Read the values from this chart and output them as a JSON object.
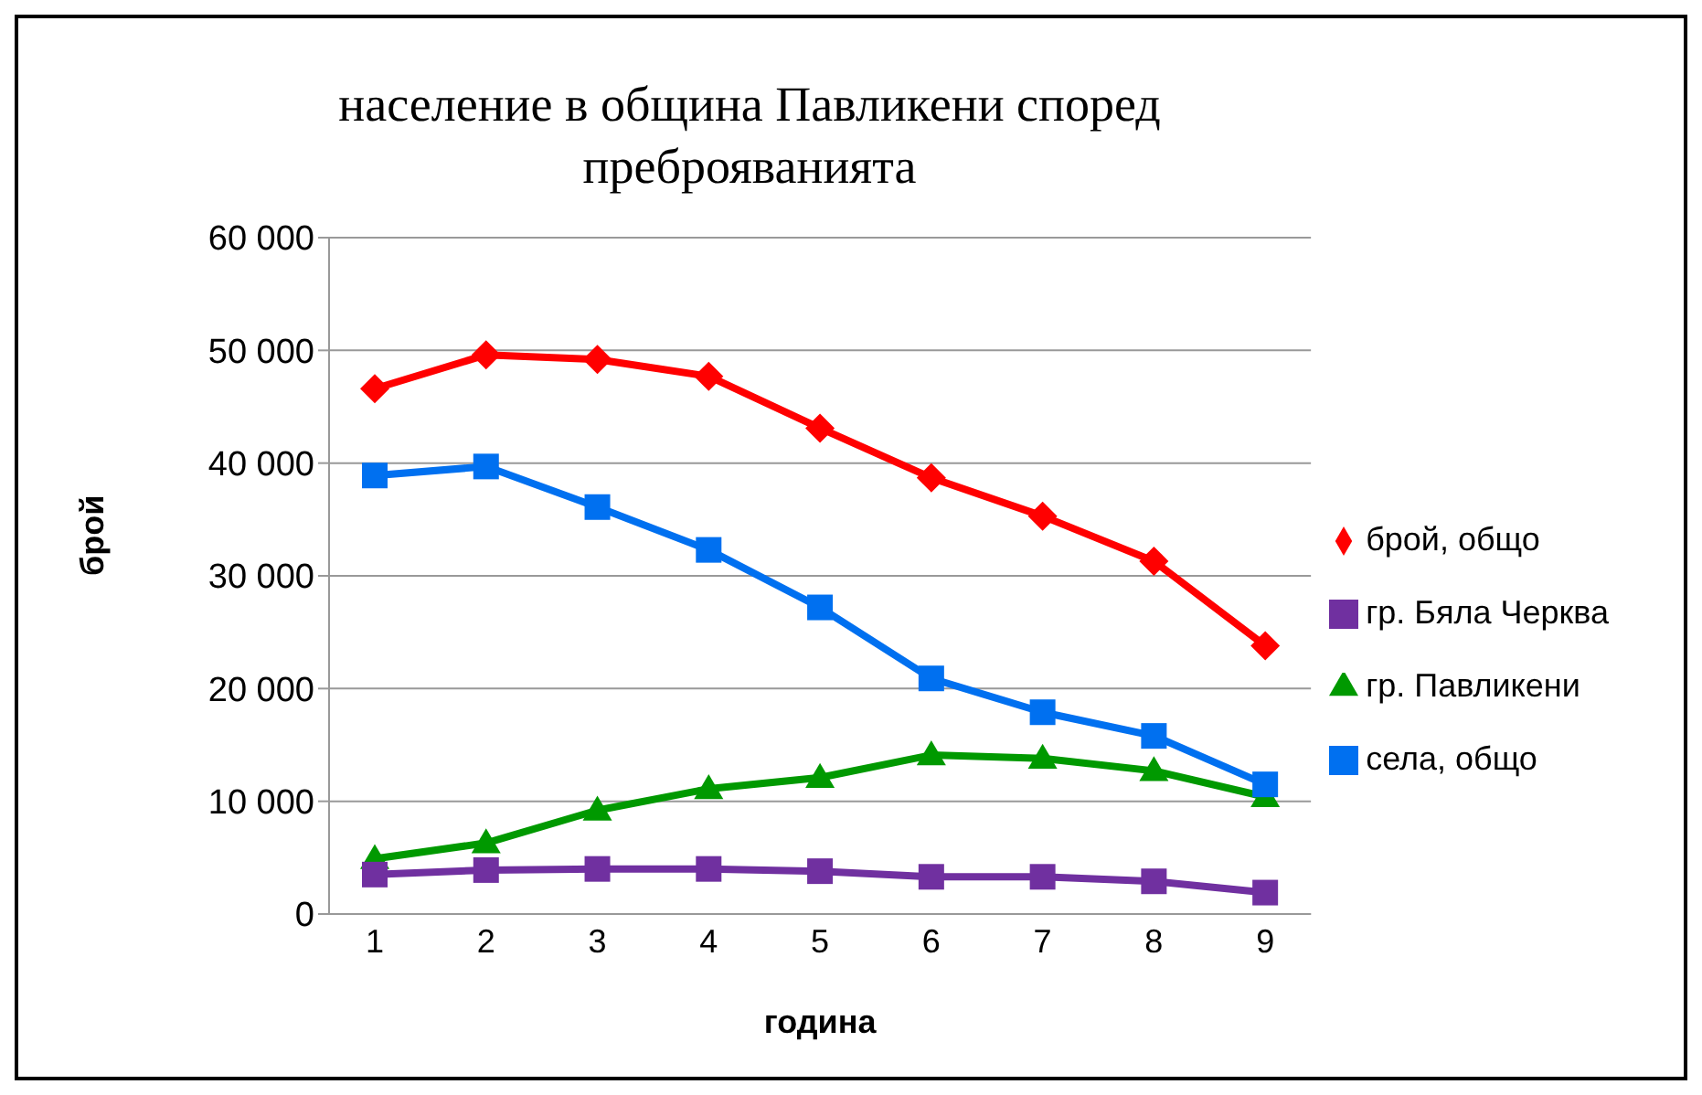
{
  "chart_data": {
    "type": "line",
    "title": "население в община Павликени според преброяванията",
    "xlabel": "година",
    "ylabel": "брой",
    "categories": [
      "1",
      "2",
      "3",
      "4",
      "5",
      "6",
      "7",
      "8",
      "9"
    ],
    "series": [
      {
        "name": "брой, общо",
        "color": "#ff0000",
        "marker": "diamond",
        "values": [
          46600,
          49600,
          49200,
          47700,
          43100,
          38700,
          35300,
          31300,
          23800
        ]
      },
      {
        "name": "гр. Павликени",
        "color": "#009900",
        "marker": "triangle",
        "values": [
          4900,
          6300,
          9200,
          11100,
          12100,
          14100,
          13800,
          12700,
          10400
        ]
      },
      {
        "name": "гр. Бяла Черква",
        "color": "#7030a0",
        "marker": "square",
        "values": [
          3500,
          3900,
          4000,
          4000,
          3800,
          3300,
          3300,
          2900,
          1900
        ]
      },
      {
        "name": "села, общо",
        "color": "#0070f0",
        "marker": "square",
        "values": [
          38900,
          39700,
          36100,
          32300,
          27200,
          20900,
          17900,
          15800,
          11500
        ]
      }
    ],
    "ylim": [
      0,
      60000
    ],
    "yticks": [
      0,
      {
        "value": 10000,
        "label": "10 000"
      },
      {
        "value": 20000,
        "label": "20 000"
      },
      {
        "value": 30000,
        "label": "30 000"
      },
      {
        "value": 40000,
        "label": "40 000"
      },
      {
        "value": 50000,
        "label": "50 000"
      },
      {
        "value": 60000,
        "label": "60 000"
      }
    ],
    "grid": "y",
    "legend": "right"
  }
}
